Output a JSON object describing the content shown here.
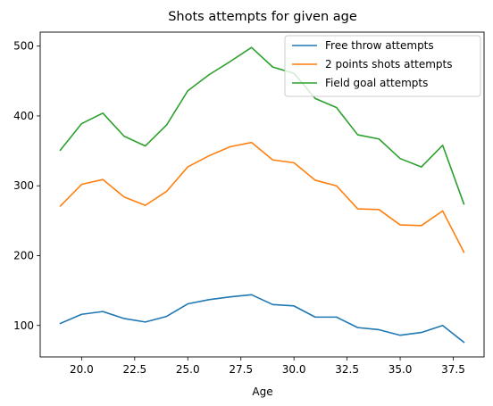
{
  "chart_data": {
    "type": "line",
    "title": "Shots attempts for given age",
    "xlabel": "Age",
    "ylabel": "",
    "x": [
      19,
      20,
      21,
      22,
      23,
      24,
      25,
      26,
      27,
      28,
      29,
      30,
      31,
      32,
      33,
      34,
      35,
      36,
      37,
      38
    ],
    "xlim": [
      18.05,
      38.95
    ],
    "ylim": [
      55,
      520
    ],
    "xticks": [
      20.0,
      22.5,
      25.0,
      27.5,
      30.0,
      32.5,
      35.0,
      37.5
    ],
    "xtick_labels": [
      "20.0",
      "22.5",
      "25.0",
      "27.5",
      "30.0",
      "32.5",
      "35.0",
      "37.5"
    ],
    "yticks": [
      100,
      200,
      300,
      400,
      500
    ],
    "ytick_labels": [
      "100",
      "200",
      "300",
      "400",
      "500"
    ],
    "grid": false,
    "legend_position": "top-right",
    "series": [
      {
        "name": "Free throw attempts",
        "color": "#1f77b4",
        "values": [
          103,
          116,
          120,
          110,
          105,
          113,
          131,
          137,
          141,
          144,
          130,
          128,
          112,
          112,
          97,
          94,
          86,
          90,
          100,
          76
        ]
      },
      {
        "name": "2 points shots attempts",
        "color": "#ff7f0e",
        "values": [
          271,
          302,
          309,
          284,
          272,
          292,
          327,
          343,
          356,
          362,
          337,
          333,
          308,
          300,
          267,
          266,
          244,
          243,
          264,
          205
        ]
      },
      {
        "name": "Field goal attempts",
        "color": "#2ca02c",
        "values": [
          351,
          389,
          404,
          371,
          357,
          387,
          436,
          459,
          478,
          498,
          470,
          461,
          425,
          412,
          373,
          367,
          339,
          327,
          358,
          274
        ]
      }
    ]
  }
}
